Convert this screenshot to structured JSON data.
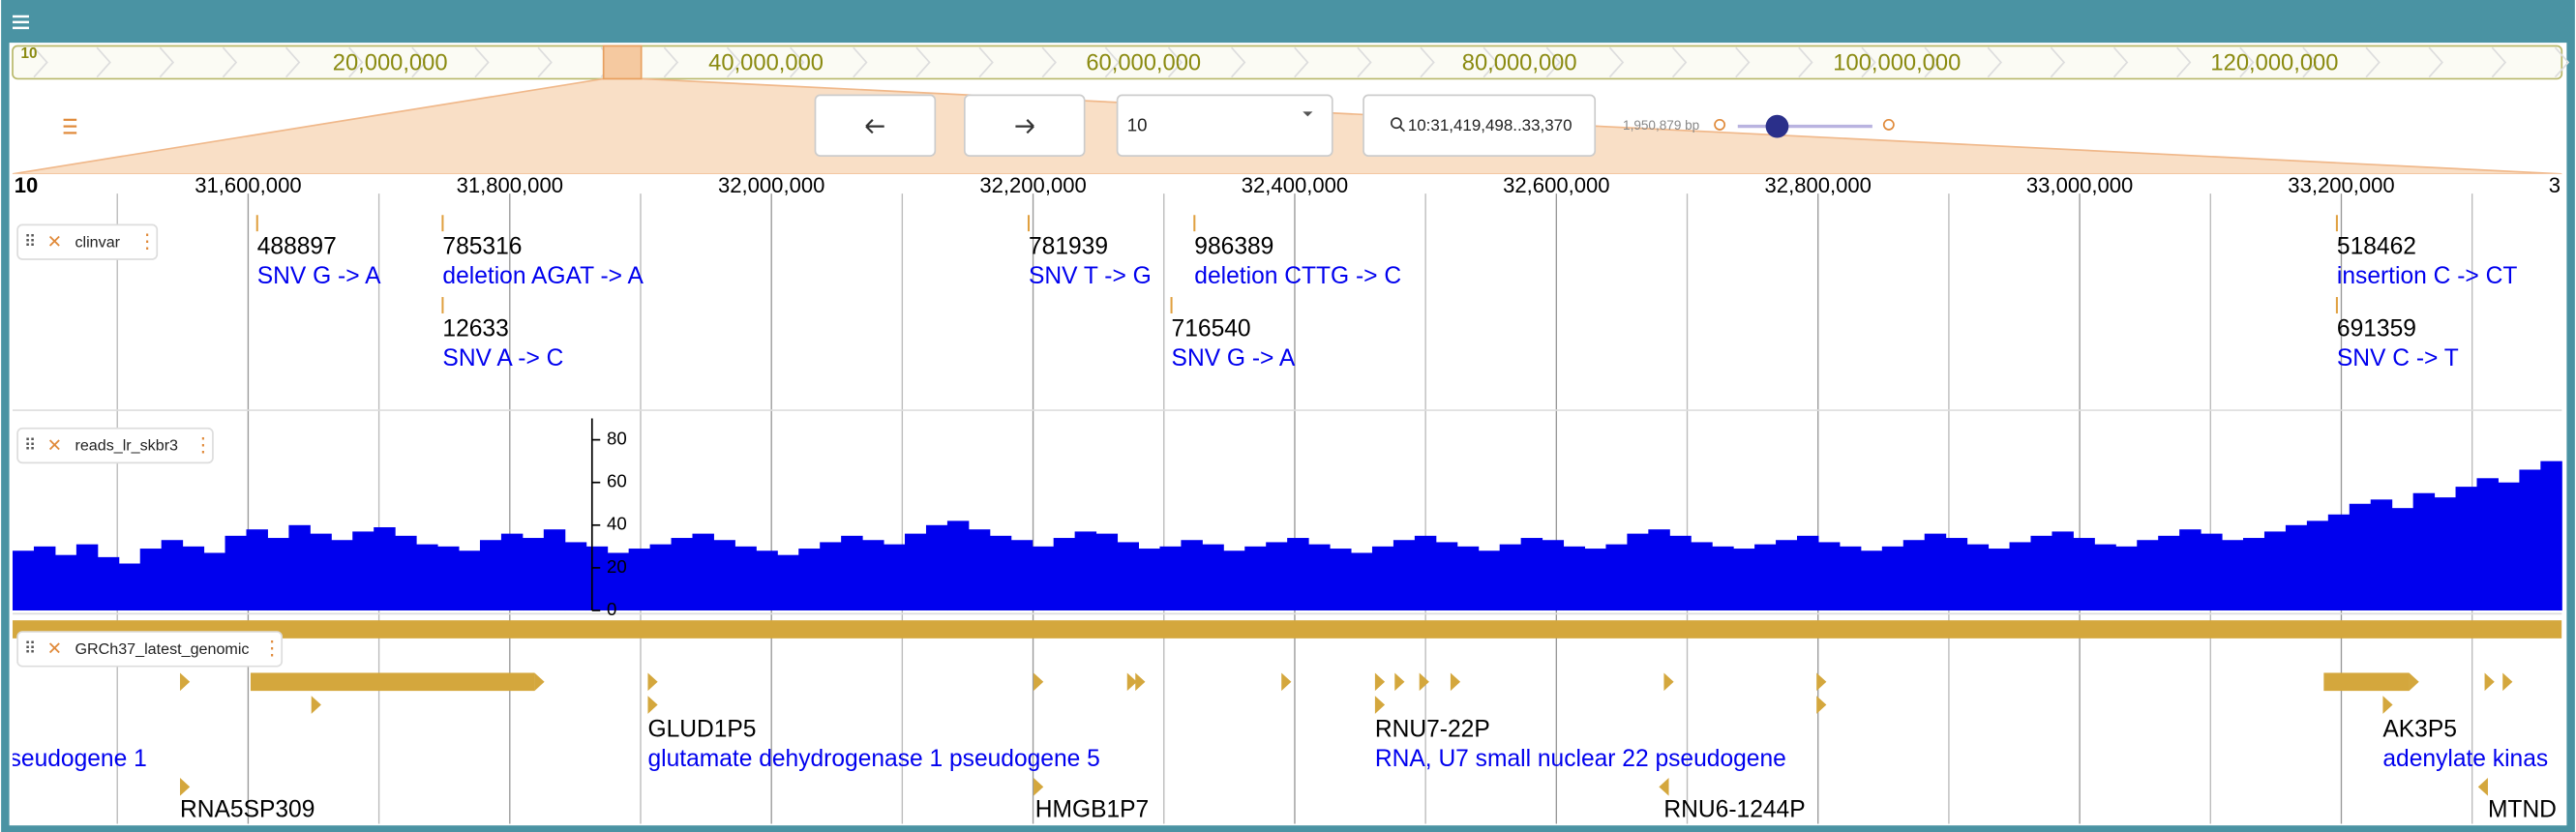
{
  "overview": {
    "chromosome": "10",
    "ticks": [
      "20,000,000",
      "40,000,000",
      "60,000,000",
      "80,000,000",
      "100,000,000",
      "120,000,000"
    ]
  },
  "toolbar": {
    "refname": "10",
    "location": "10:31,419,498..33,370",
    "span": "1,950,879 bp"
  },
  "ruler": {
    "chromosome": "10",
    "ticks": [
      "31,600,000",
      "31,800,000",
      "32,000,000",
      "32,200,000",
      "32,400,000",
      "32,600,000",
      "32,800,000",
      "33,000,000",
      "33,200,000"
    ],
    "edge": "3"
  },
  "tracks": [
    {
      "name": "clinvar",
      "features": [
        {
          "id": "488897",
          "desc": "SNV G -> A"
        },
        {
          "id": "785316",
          "desc": "deletion AGAT -> A"
        },
        {
          "id": "12633",
          "desc": "SNV A -> C"
        },
        {
          "id": "781939",
          "desc": "SNV T -> G"
        },
        {
          "id": "986389",
          "desc": "deletion CTTG -> C"
        },
        {
          "id": "716540",
          "desc": "SNV G -> A"
        },
        {
          "id": "518462",
          "desc": "insertion C -> CT"
        },
        {
          "id": "691359",
          "desc": "SNV C -> T"
        }
      ]
    },
    {
      "name": "reads_lr_skbr3",
      "color": "#0000ee",
      "ylim": [
        0,
        90
      ],
      "yticks": [
        0,
        20,
        40,
        60,
        80
      ],
      "values": [
        28,
        30,
        26,
        31,
        25,
        22,
        29,
        33,
        30,
        27,
        35,
        38,
        34,
        40,
        36,
        33,
        37,
        39,
        35,
        31,
        30,
        28,
        33,
        36,
        34,
        38,
        32,
        30,
        27,
        29,
        31,
        34,
        36,
        33,
        30,
        28,
        26,
        29,
        32,
        35,
        33,
        31,
        36,
        40,
        42,
        38,
        35,
        33,
        30,
        34,
        37,
        36,
        32,
        29,
        30,
        33,
        31,
        28,
        30,
        32,
        34,
        31,
        29,
        27,
        30,
        33,
        35,
        32,
        30,
        28,
        31,
        34,
        33,
        30,
        29,
        31,
        36,
        38,
        35,
        32,
        30,
        29,
        31,
        33,
        35,
        32,
        30,
        28,
        30,
        33,
        36,
        34,
        31,
        29,
        32,
        35,
        37,
        34,
        31,
        30,
        33,
        35,
        38,
        36,
        33,
        34,
        37,
        40,
        42,
        45,
        50,
        52,
        48,
        55,
        53,
        58,
        62,
        60,
        66,
        70
      ]
    },
    {
      "name": "GRCh37_latest_genomic",
      "features": [
        {
          "desc": "seudogene 1"
        },
        {
          "name": "GLUD1P5",
          "desc": "glutamate dehydrogenase 1 pseudogene 5"
        },
        {
          "name": "RNU7-22P",
          "desc": "RNA, U7 small nuclear 22 pseudogene"
        },
        {
          "name": "AK3P5",
          "desc": "adenylate kinas"
        },
        {
          "name": "RNA5SP309"
        },
        {
          "name": "HMGB1P7"
        },
        {
          "name": "RNU6-1244P"
        },
        {
          "name": "MTND"
        }
      ]
    }
  ]
}
